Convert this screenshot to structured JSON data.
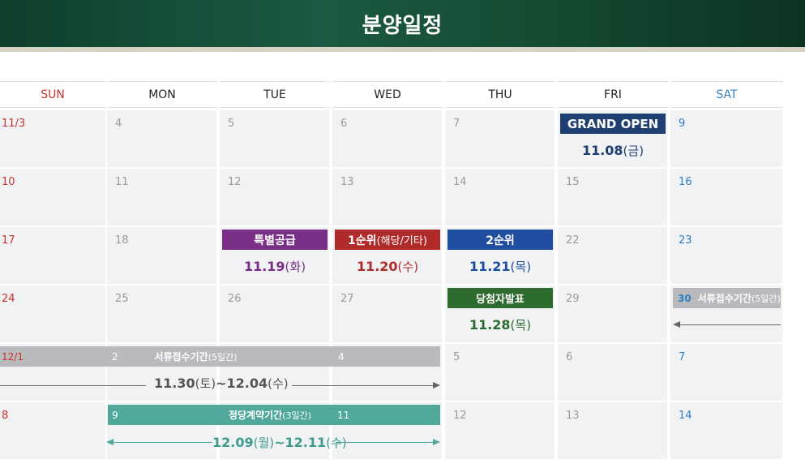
{
  "header": {
    "title": "분양일정"
  },
  "days": [
    "SUN",
    "MON",
    "TUE",
    "WED",
    "THU",
    "FRI",
    "SAT"
  ],
  "weeks": [
    [
      "11/3",
      "4",
      "5",
      "6",
      "7",
      "",
      "9"
    ],
    [
      "10",
      "11",
      "12",
      "13",
      "14",
      "15",
      "16"
    ],
    [
      "17",
      "18",
      "",
      "",
      "",
      "22",
      "23"
    ],
    [
      "24",
      "25",
      "26",
      "27",
      "",
      "29",
      ""
    ],
    [
      "12/1",
      "",
      "",
      "",
      "5",
      "6",
      "7"
    ],
    [
      "8",
      "",
      "",
      "",
      "12",
      "13",
      "14"
    ]
  ],
  "events": {
    "grand_open": {
      "label": "GRAND OPEN",
      "date": "11.08",
      "dow": "(금)"
    },
    "special": {
      "label": "특별공급",
      "date": "11.19",
      "dow": "(화)"
    },
    "first": {
      "label": "1순위",
      "sub": " (해당/기타)",
      "date": "11.20",
      "dow": "(수)"
    },
    "second": {
      "label": "2순위",
      "date": "11.21",
      "dow": "(목)"
    },
    "winner": {
      "label": "당첨자발표",
      "date": "11.28",
      "dow": "(목)"
    },
    "doc_w4": {
      "day": "30",
      "label": "서류접수기간",
      "sub": "(5일간)"
    },
    "doc_w5": {
      "d1": "2",
      "label": "서류접수기간",
      "sub": "(5일간)",
      "d2": "4",
      "range_a": "11.30",
      "dow_a": "(토)",
      "sep": "~",
      "range_b": "12.04",
      "dow_b": "(수)"
    },
    "contract": {
      "d1": "9",
      "label": "정당계약기간",
      "sub": "(3일간)",
      "d2": "11",
      "range_a": "12.09",
      "dow_a": "(월)",
      "sep": "~",
      "range_b": "12.11",
      "dow_b": "(수)"
    }
  },
  "colors": {
    "header": "#14492f",
    "grand_open": "#1f3f72",
    "special": "#7a2f86",
    "first": "#b02a2a",
    "second": "#1f4da0",
    "winner": "#2e6b2e",
    "doc": "#b9babd",
    "contract": "#4fa89a"
  }
}
